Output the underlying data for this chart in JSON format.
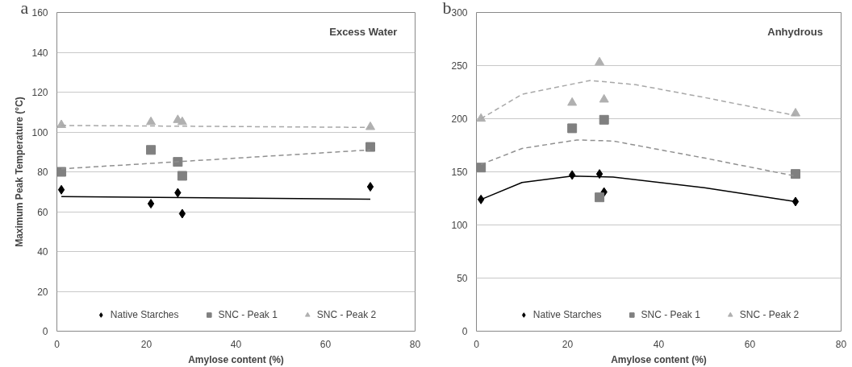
{
  "chart_data": [
    {
      "type": "scatter",
      "title": "Excess Water",
      "annotations": [
        "a"
      ],
      "xlabel": "Amylose content (%)",
      "ylabel": "Maximum Peak Temperature (°C)",
      "xlim": [
        0,
        80
      ],
      "xticks": [
        0,
        20,
        40,
        60,
        80
      ],
      "ylim": [
        0,
        160
      ],
      "yticks": [
        0,
        20,
        40,
        60,
        80,
        100,
        120,
        140,
        160
      ],
      "grid": "y",
      "legend": "bottom",
      "x": [
        1,
        21,
        27,
        28,
        70
      ],
      "series": [
        {
          "name": "Native Starches",
          "color": "#000000",
          "marker": "diamond",
          "values": [
            71,
            64,
            69.5,
            59,
            72.5
          ]
        },
        {
          "name": "SNC - Peak 1",
          "color": "#808080",
          "marker": "square",
          "values": [
            80,
            91,
            85,
            78,
            92.5
          ]
        },
        {
          "name": "SNC - Peak 2",
          "color": "#b0b0b0",
          "marker": "triangle",
          "values": [
            103.5,
            105,
            106,
            105,
            102.5
          ]
        },
        {
          "type": "line",
          "color": "#000000",
          "line_style": "solid",
          "x": [
            1,
            70
          ],
          "values": [
            67.6,
            66.3
          ]
        },
        {
          "type": "line",
          "color": "#909090",
          "line_style": "dashed",
          "x": [
            1,
            70
          ],
          "values": [
            81.5,
            91
          ]
        },
        {
          "type": "line",
          "color": "#a8a8a8",
          "line_style": "dashed",
          "x": [
            1,
            70
          ],
          "values": [
            103.3,
            102.3
          ]
        }
      ]
    },
    {
      "type": "scatter",
      "title": "Anhydrous",
      "annotations": [
        "b"
      ],
      "xlabel": "Amylose content (%)",
      "xlim": [
        0,
        80
      ],
      "xticks": [
        0,
        20,
        40,
        60,
        80
      ],
      "ylim": [
        0,
        300
      ],
      "yticks": [
        0,
        50,
        100,
        150,
        200,
        250,
        300
      ],
      "grid": "y",
      "legend": "bottom",
      "x": [
        1,
        21,
        27,
        28,
        70
      ],
      "series": [
        {
          "name": "Native Starches",
          "color": "#000000",
          "marker": "diamond",
          "values": [
            124,
            147,
            148,
            131,
            122
          ]
        },
        {
          "name": "SNC - Peak 1",
          "color": "#808080",
          "marker": "square",
          "values": [
            154,
            191,
            126,
            199,
            148
          ]
        },
        {
          "name": "SNC - Peak 2",
          "color": "#b0b0b0",
          "marker": "triangle",
          "values": [
            200,
            215,
            253,
            218,
            205
          ]
        },
        {
          "type": "line",
          "color": "#000000",
          "line_style": "solid",
          "x": [
            1,
            10,
            21,
            30,
            50,
            70
          ],
          "values": [
            124,
            140,
            146,
            145,
            135,
            122
          ]
        },
        {
          "type": "line",
          "color": "#909090",
          "line_style": "dashed",
          "x": [
            1,
            10,
            22,
            30,
            50,
            70
          ],
          "values": [
            157,
            172,
            180,
            179,
            163,
            146
          ]
        },
        {
          "type": "line",
          "color": "#a8a8a8",
          "line_style": "dashed",
          "x": [
            1,
            10,
            25,
            35,
            50,
            70
          ],
          "values": [
            200,
            223,
            236,
            232,
            220,
            203
          ]
        }
      ]
    }
  ]
}
